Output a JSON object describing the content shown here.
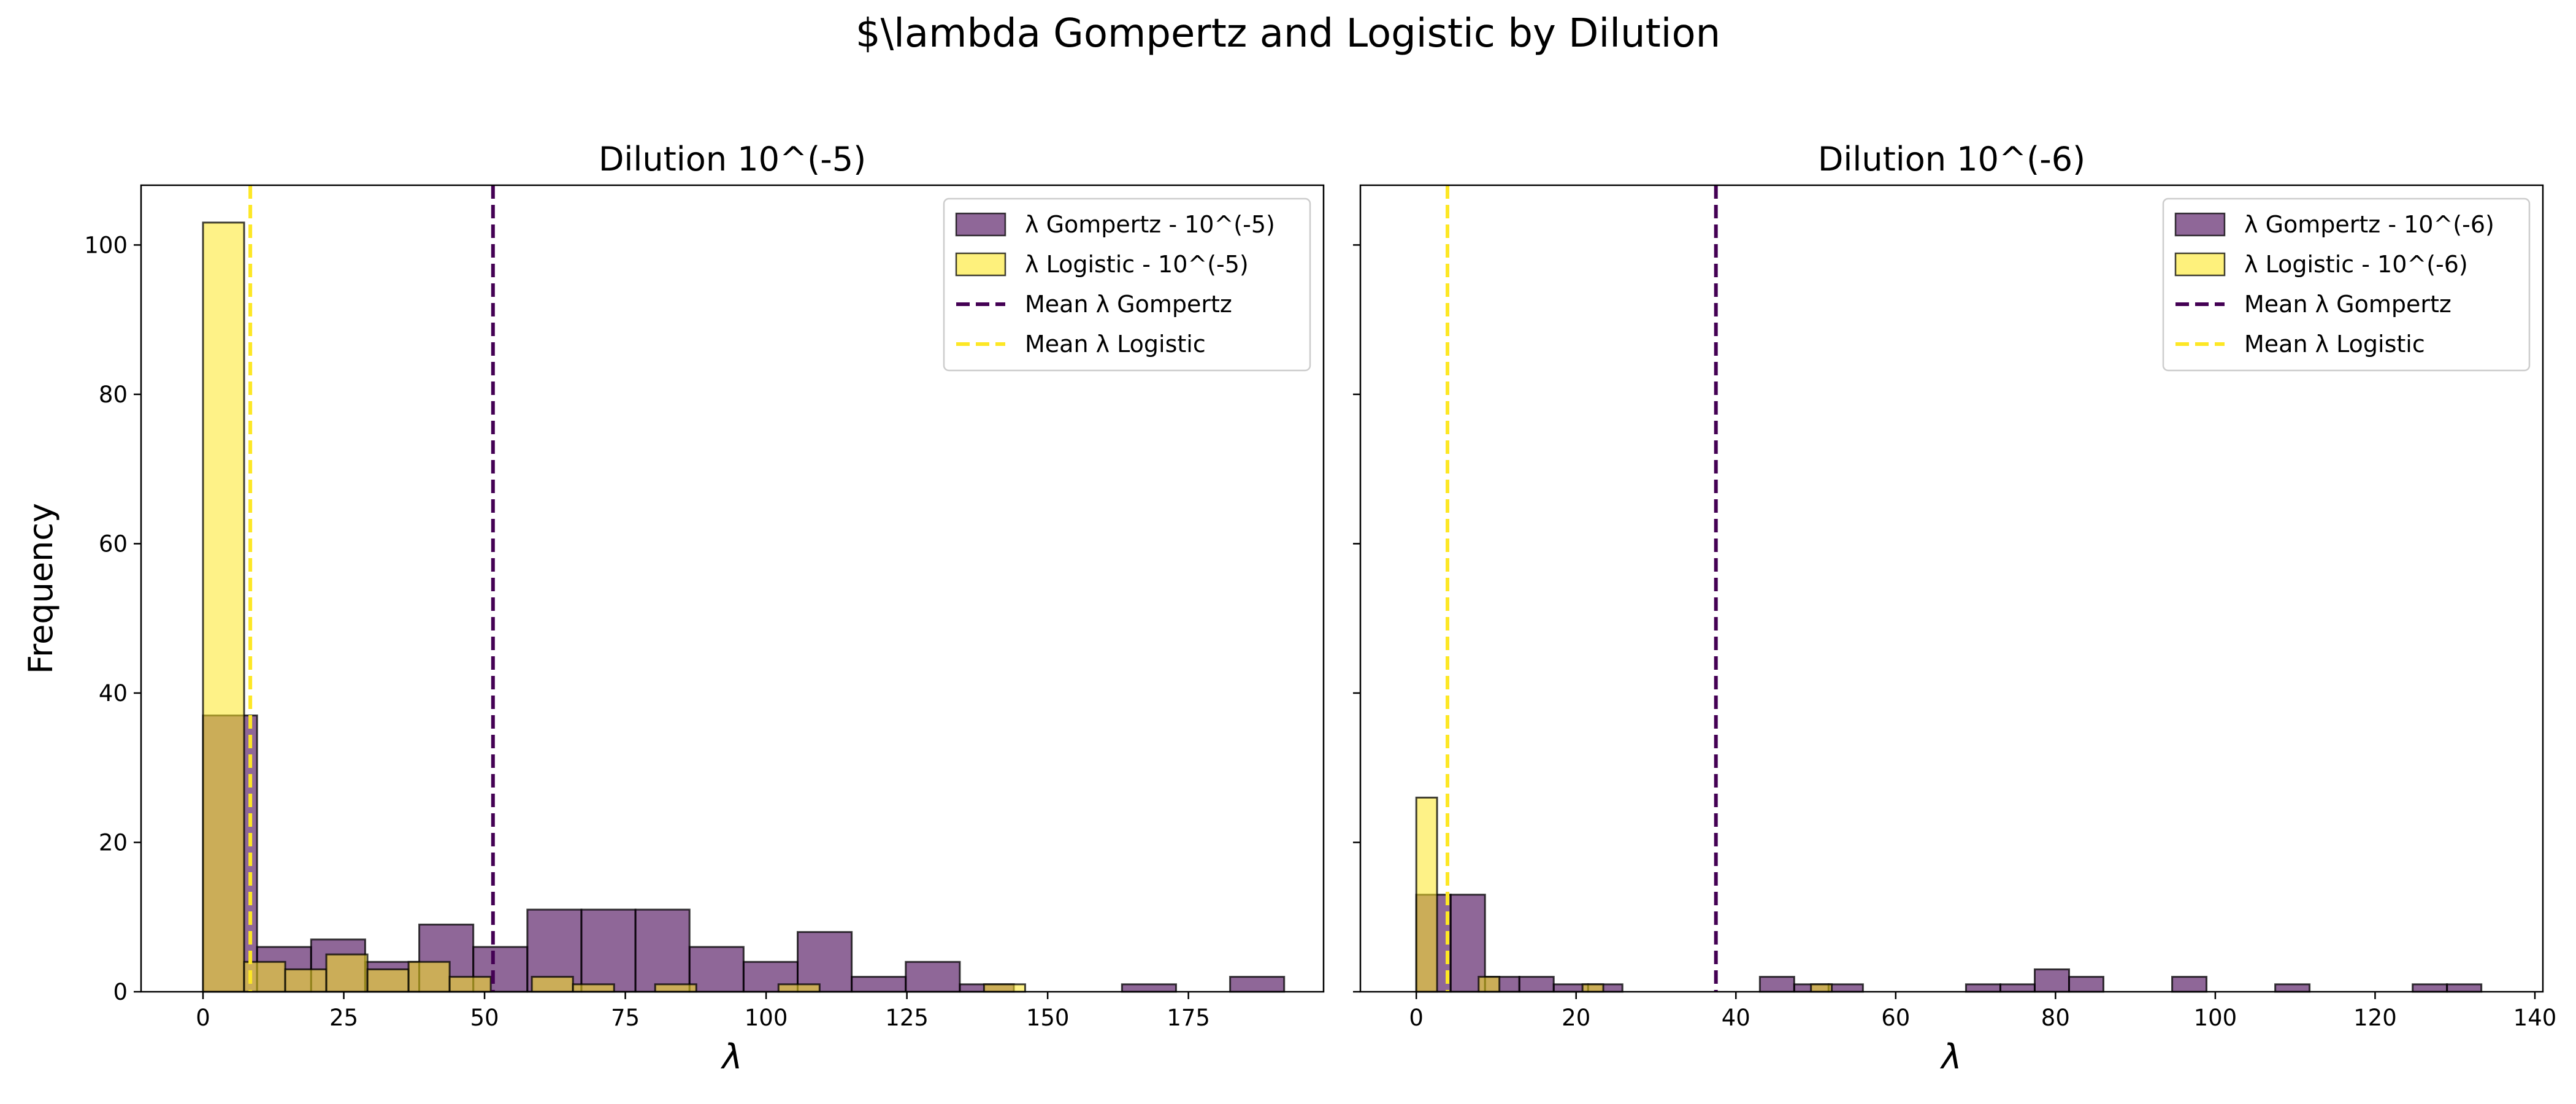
{
  "suptitle": "$\\lambda Gompertz and Logistic by Dilution",
  "chart_data": [
    {
      "type": "bar",
      "title": "Dilution 10^(-5)",
      "xlabel": "λ",
      "ylabel": "Frequency",
      "xlim": [
        -11,
        199
      ],
      "ylim": [
        0,
        108
      ],
      "xticks": [
        0,
        25,
        50,
        75,
        100,
        125,
        150,
        175
      ],
      "yticks": [
        0,
        20,
        40,
        60,
        80,
        100
      ],
      "legend_position": "upper right",
      "series": [
        {
          "name": "λ Gompertz - 10^(-5)",
          "kind": "histogram",
          "color": "#440154",
          "bins": [
            {
              "x0": 0,
              "x1": 9.6,
              "count": 37
            },
            {
              "x0": 9.6,
              "x1": 19.2,
              "count": 6
            },
            {
              "x0": 19.2,
              "x1": 28.8,
              "count": 7
            },
            {
              "x0": 28.8,
              "x1": 38.4,
              "count": 4
            },
            {
              "x0": 38.4,
              "x1": 48.0,
              "count": 9
            },
            {
              "x0": 48.0,
              "x1": 57.6,
              "count": 6
            },
            {
              "x0": 57.6,
              "x1": 67.2,
              "count": 11
            },
            {
              "x0": 67.2,
              "x1": 76.8,
              "count": 11
            },
            {
              "x0": 76.8,
              "x1": 86.4,
              "count": 11
            },
            {
              "x0": 86.4,
              "x1": 96.0,
              "count": 6
            },
            {
              "x0": 96.0,
              "x1": 105.6,
              "count": 4
            },
            {
              "x0": 105.6,
              "x1": 115.2,
              "count": 8
            },
            {
              "x0": 115.2,
              "x1": 124.8,
              "count": 2
            },
            {
              "x0": 124.8,
              "x1": 134.4,
              "count": 4
            },
            {
              "x0": 134.4,
              "x1": 144.0,
              "count": 1
            },
            {
              "x0": 144.0,
              "x1": 153.6,
              "count": 0
            },
            {
              "x0": 153.6,
              "x1": 163.2,
              "count": 0
            },
            {
              "x0": 163.2,
              "x1": 172.8,
              "count": 1
            },
            {
              "x0": 172.8,
              "x1": 182.4,
              "count": 0
            },
            {
              "x0": 182.4,
              "x1": 192.0,
              "count": 2
            }
          ]
        },
        {
          "name": "λ Logistic - 10^(-5)",
          "kind": "histogram",
          "color": "#fde725",
          "bins": [
            {
              "x0": 0,
              "x1": 7.3,
              "count": 103
            },
            {
              "x0": 7.3,
              "x1": 14.6,
              "count": 4
            },
            {
              "x0": 14.6,
              "x1": 21.9,
              "count": 3
            },
            {
              "x0": 21.9,
              "x1": 29.2,
              "count": 5
            },
            {
              "x0": 29.2,
              "x1": 36.5,
              "count": 3
            },
            {
              "x0": 36.5,
              "x1": 43.8,
              "count": 4
            },
            {
              "x0": 43.8,
              "x1": 51.1,
              "count": 2
            },
            {
              "x0": 51.1,
              "x1": 58.4,
              "count": 0
            },
            {
              "x0": 58.4,
              "x1": 65.7,
              "count": 2
            },
            {
              "x0": 65.7,
              "x1": 73.0,
              "count": 1
            },
            {
              "x0": 73.0,
              "x1": 80.3,
              "count": 0
            },
            {
              "x0": 80.3,
              "x1": 87.6,
              "count": 1
            },
            {
              "x0": 87.6,
              "x1": 94.9,
              "count": 0
            },
            {
              "x0": 94.9,
              "x1": 102.2,
              "count": 0
            },
            {
              "x0": 102.2,
              "x1": 109.5,
              "count": 1
            },
            {
              "x0": 109.5,
              "x1": 116.8,
              "count": 0
            },
            {
              "x0": 116.8,
              "x1": 124.1,
              "count": 0
            },
            {
              "x0": 124.1,
              "x1": 131.4,
              "count": 0
            },
            {
              "x0": 131.4,
              "x1": 138.7,
              "count": 0
            },
            {
              "x0": 138.7,
              "x1": 146.0,
              "count": 1
            }
          ]
        }
      ],
      "vlines": [
        {
          "name": "Mean λ Gompertz",
          "x": 51.5,
          "color": "#440154"
        },
        {
          "name": "Mean λ Logistic",
          "x": 8.4,
          "color": "#fde725"
        }
      ]
    },
    {
      "type": "bar",
      "title": "Dilution 10^(-6)",
      "xlabel": "λ",
      "ylabel": "",
      "xlim": [
        -7,
        141
      ],
      "ylim": [
        0,
        108
      ],
      "xticks": [
        0,
        20,
        40,
        60,
        80,
        100,
        120,
        140
      ],
      "yticks": [
        0,
        20,
        40,
        60,
        80,
        100
      ],
      "legend_position": "upper right",
      "series": [
        {
          "name": "λ Gompertz - 10^(-6)",
          "kind": "histogram",
          "color": "#440154",
          "bins": [
            {
              "x0": 0,
              "x1": 4.3,
              "count": 13
            },
            {
              "x0": 4.3,
              "x1": 8.6,
              "count": 13
            },
            {
              "x0": 8.6,
              "x1": 12.9,
              "count": 2
            },
            {
              "x0": 12.9,
              "x1": 17.2,
              "count": 2
            },
            {
              "x0": 17.2,
              "x1": 21.5,
              "count": 1
            },
            {
              "x0": 21.5,
              "x1": 25.8,
              "count": 1
            },
            {
              "x0": 25.8,
              "x1": 30.1,
              "count": 0
            },
            {
              "x0": 30.1,
              "x1": 34.4,
              "count": 0
            },
            {
              "x0": 34.4,
              "x1": 38.7,
              "count": 0
            },
            {
              "x0": 38.7,
              "x1": 43.0,
              "count": 0
            },
            {
              "x0": 43.0,
              "x1": 47.3,
              "count": 2
            },
            {
              "x0": 47.3,
              "x1": 51.6,
              "count": 1
            },
            {
              "x0": 51.6,
              "x1": 55.9,
              "count": 1
            },
            {
              "x0": 55.9,
              "x1": 60.2,
              "count": 0
            },
            {
              "x0": 60.2,
              "x1": 64.5,
              "count": 0
            },
            {
              "x0": 64.5,
              "x1": 68.8,
              "count": 0
            },
            {
              "x0": 68.8,
              "x1": 73.1,
              "count": 1
            },
            {
              "x0": 73.1,
              "x1": 77.4,
              "count": 1
            },
            {
              "x0": 77.4,
              "x1": 81.7,
              "count": 3
            },
            {
              "x0": 81.7,
              "x1": 86.0,
              "count": 2
            },
            {
              "x0": 86.0,
              "x1": 90.3,
              "count": 0
            },
            {
              "x0": 90.3,
              "x1": 94.6,
              "count": 0
            },
            {
              "x0": 94.6,
              "x1": 98.9,
              "count": 2
            },
            {
              "x0": 98.9,
              "x1": 103.2,
              "count": 0
            },
            {
              "x0": 103.2,
              "x1": 107.5,
              "count": 0
            },
            {
              "x0": 107.5,
              "x1": 111.8,
              "count": 1
            },
            {
              "x0": 111.8,
              "x1": 116.1,
              "count": 0
            },
            {
              "x0": 116.1,
              "x1": 120.4,
              "count": 0
            },
            {
              "x0": 120.4,
              "x1": 124.7,
              "count": 0
            },
            {
              "x0": 124.7,
              "x1": 129.0,
              "count": 1
            },
            {
              "x0": 129.0,
              "x1": 133.3,
              "count": 1
            }
          ]
        },
        {
          "name": "λ Logistic - 10^(-6)",
          "kind": "histogram",
          "color": "#fde725",
          "bins": [
            {
              "x0": 0,
              "x1": 2.6,
              "count": 26
            },
            {
              "x0": 2.6,
              "x1": 5.2,
              "count": 0
            },
            {
              "x0": 5.2,
              "x1": 7.8,
              "count": 0
            },
            {
              "x0": 7.8,
              "x1": 10.4,
              "count": 2
            },
            {
              "x0": 10.4,
              "x1": 13.0,
              "count": 0
            },
            {
              "x0": 13.0,
              "x1": 15.6,
              "count": 0
            },
            {
              "x0": 15.6,
              "x1": 18.2,
              "count": 0
            },
            {
              "x0": 18.2,
              "x1": 20.8,
              "count": 0
            },
            {
              "x0": 20.8,
              "x1": 23.4,
              "count": 1
            },
            {
              "x0": 23.4,
              "x1": 26.0,
              "count": 0
            },
            {
              "x0": 26.0,
              "x1": 28.6,
              "count": 0
            },
            {
              "x0": 28.6,
              "x1": 31.2,
              "count": 0
            },
            {
              "x0": 31.2,
              "x1": 33.8,
              "count": 0
            },
            {
              "x0": 33.8,
              "x1": 36.4,
              "count": 0
            },
            {
              "x0": 36.4,
              "x1": 39.0,
              "count": 0
            },
            {
              "x0": 39.0,
              "x1": 41.6,
              "count": 0
            },
            {
              "x0": 41.6,
              "x1": 44.2,
              "count": 0
            },
            {
              "x0": 44.2,
              "x1": 46.8,
              "count": 0
            },
            {
              "x0": 46.8,
              "x1": 49.4,
              "count": 0
            },
            {
              "x0": 49.4,
              "x1": 52.0,
              "count": 1
            }
          ]
        }
      ],
      "vlines": [
        {
          "name": "Mean λ Gompertz",
          "x": 37.5,
          "color": "#440154"
        },
        {
          "name": "Mean λ Logistic",
          "x": 3.9,
          "color": "#fde725"
        }
      ]
    }
  ]
}
